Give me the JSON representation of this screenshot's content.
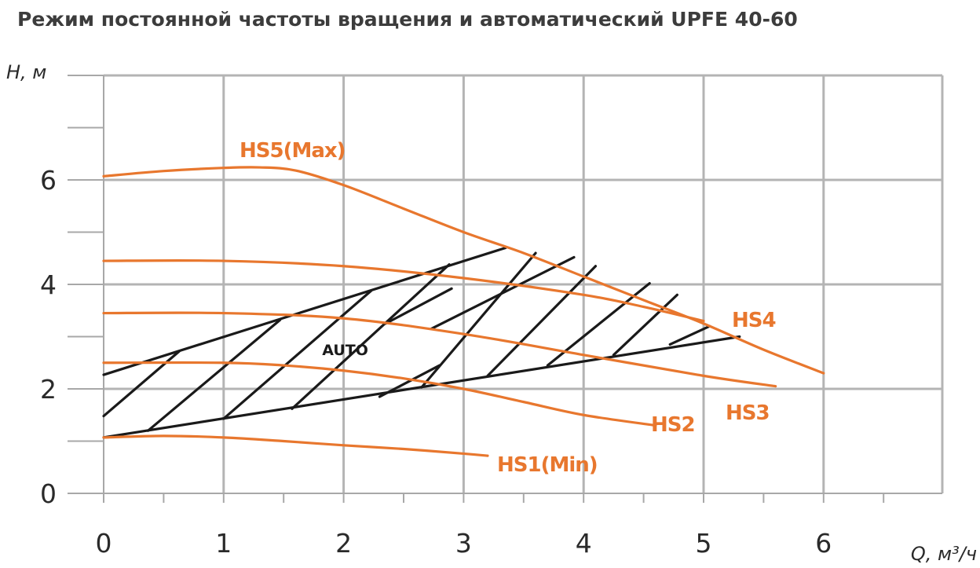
{
  "title": "Режим постоянной частоты вращения и автоматический  UPFE 40-60",
  "chart_data": {
    "type": "line",
    "title": "Режим постоянной частоты вращения и автоматический  UPFE 40-60",
    "xlabel": "Q, м³/ч",
    "ylabel": "Н, м",
    "xlim": [
      0,
      7
    ],
    "ylim": [
      0,
      8
    ],
    "x_ticks": [
      "0",
      "1",
      "2",
      "3",
      "4",
      "5",
      "6"
    ],
    "y_ticks": [
      "0",
      "2",
      "4",
      "6"
    ],
    "grid": true,
    "series": [
      {
        "name": "HS5(Max)",
        "color": "#e8772e",
        "x": [
          0,
          0.5,
          1.0,
          1.3,
          1.6,
          2.0,
          2.5,
          3.0,
          3.5,
          4.0,
          4.5,
          5.0,
          5.5,
          6.0
        ],
        "y": [
          6.07,
          6.17,
          6.23,
          6.24,
          6.18,
          5.9,
          5.45,
          5.0,
          4.6,
          4.15,
          3.7,
          3.25,
          2.75,
          2.3
        ]
      },
      {
        "name": "HS4",
        "color": "#e8772e",
        "x": [
          0,
          1,
          2,
          3,
          4,
          4.5,
          5.0
        ],
        "y": [
          4.45,
          4.45,
          4.35,
          4.12,
          3.8,
          3.57,
          3.3
        ]
      },
      {
        "name": "HS3",
        "color": "#e8772e",
        "x": [
          0,
          1,
          2,
          3,
          4,
          5,
          5.6
        ],
        "y": [
          3.45,
          3.45,
          3.35,
          3.05,
          2.65,
          2.25,
          2.05
        ]
      },
      {
        "name": "HS2",
        "color": "#e8772e",
        "x": [
          0,
          1,
          1.5,
          2,
          2.5,
          3,
          3.5,
          4.0,
          4.6
        ],
        "y": [
          2.5,
          2.5,
          2.45,
          2.35,
          2.2,
          2.0,
          1.75,
          1.5,
          1.3
        ]
      },
      {
        "name": "HS1(Min)",
        "color": "#e8772e",
        "x": [
          0,
          0.5,
          1.0,
          1.5,
          2.0,
          2.5,
          3.0,
          3.2
        ],
        "y": [
          1.07,
          1.1,
          1.07,
          1.0,
          0.92,
          0.85,
          0.76,
          0.72
        ]
      }
    ],
    "auto_region": {
      "label": "AUTO",
      "upper_line": {
        "x": [
          0,
          3.35
        ],
        "y": [
          2.27,
          4.7
        ]
      },
      "lower_line": {
        "x": [
          0,
          5.3
        ],
        "y": [
          1.07,
          3.0
        ]
      },
      "hatch": [
        [
          0.0,
          1.48,
          0.63,
          2.72
        ],
        [
          0.37,
          1.2,
          1.47,
          3.32
        ],
        [
          1.0,
          1.43,
          2.23,
          3.88
        ],
        [
          1.57,
          1.62,
          2.88,
          4.38
        ],
        [
          2.3,
          1.85,
          2.8,
          2.45
        ],
        [
          2.65,
          2.03,
          3.6,
          4.6
        ],
        [
          3.2,
          2.25,
          4.1,
          4.35
        ],
        [
          3.7,
          2.45,
          4.55,
          4.02
        ],
        [
          4.25,
          2.65,
          4.78,
          3.8
        ],
        [
          4.72,
          2.85,
          5.05,
          3.2
        ],
        [
          2.35,
          3.25,
          2.9,
          3.92
        ],
        [
          2.73,
          3.15,
          3.92,
          4.52
        ]
      ]
    }
  }
}
